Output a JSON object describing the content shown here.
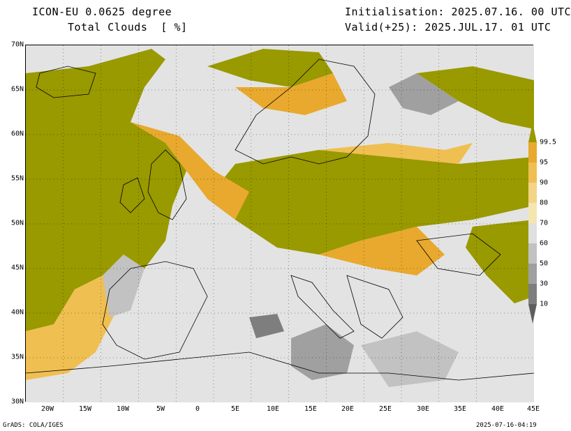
{
  "header": {
    "model": "ICON-EU 0.0625 degree",
    "variable": "Total Clouds  [ %]",
    "init": "Initialisation: 2025.07.16. 00 UTC",
    "valid": "Valid(+25): 2025.JUL.17. 01 UTC"
  },
  "footer": {
    "credit": "GrADS: COLA/IGES",
    "timestamp": "2025-07-16-04:19"
  },
  "axes": {
    "lat_labels": [
      "70N",
      "65N",
      "60N",
      "55N",
      "50N",
      "45N",
      "40N",
      "35N",
      "30N"
    ],
    "lon_labels": [
      "20W",
      "15W",
      "10W",
      "5W",
      "0",
      "5E",
      "10E",
      "15E",
      "20E",
      "25E",
      "30E",
      "35E",
      "40E",
      "45E"
    ]
  },
  "colorbar": {
    "labels": [
      "99.5",
      "95",
      "90",
      "80",
      "70",
      "60",
      "50",
      "30",
      "10"
    ],
    "colors": [
      "#999900",
      "#e8a92e",
      "#f0bf52",
      "#f2d586",
      "#f4e6b0",
      "#e0e0e0",
      "#c2c2c2",
      "#a0a0a0",
      "#7e7e7e",
      "#5e5e5e"
    ]
  },
  "colors": {
    "overcast": "#999900",
    "clear": "#e3e3e3",
    "coast": "#000000"
  }
}
